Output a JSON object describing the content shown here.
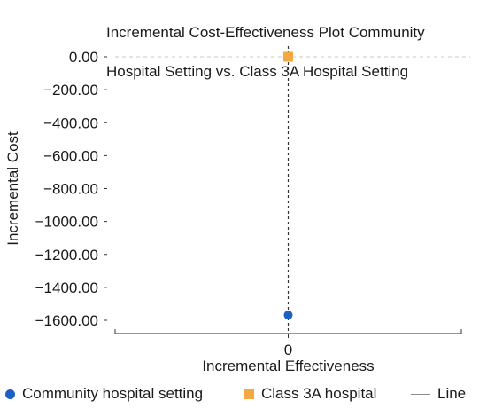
{
  "chart_data": {
    "type": "scatter",
    "title_lines": [
      "Incremental Cost-Effectiveness Plot Community",
      "Hospital Setting vs. Class 3A Hospital Setting"
    ],
    "xlabel": "Incremental Effectiveness",
    "ylabel": "Incremental Cost",
    "x_ticks": [
      0
    ],
    "y_ticks": [
      0,
      -200,
      -400,
      -600,
      -800,
      -1000,
      -1200,
      -1400,
      -1600
    ],
    "y_tick_labels": [
      "0.00",
      "−200.00",
      "−400.00",
      "−600.00",
      "−800.00",
      "−1000.00",
      "−1200.00",
      "−1400.00",
      "−1600.00"
    ],
    "x_tick_labels": [
      "0"
    ],
    "ylim": [
      -1600,
      0
    ],
    "xlim": [
      -1,
      1
    ],
    "grid": false,
    "reference_lines": [
      {
        "orientation": "horizontal",
        "value": 0,
        "style": "dashed",
        "color": "#c8c8c8"
      },
      {
        "orientation": "vertical",
        "value": 0,
        "style": "dashed",
        "color": "#333333"
      }
    ],
    "series": [
      {
        "name": "Community hospital setting",
        "marker": "circle",
        "color": "#1f5fc4",
        "points": [
          {
            "x": 0,
            "y": -1568
          }
        ]
      },
      {
        "name": "Class 3A hospital",
        "marker": "square",
        "color": "#f5a742",
        "points": [
          {
            "x": 0,
            "y": 0
          }
        ]
      },
      {
        "name": "Line",
        "marker": "line",
        "color": "#8c8c8c",
        "points": []
      }
    ],
    "legend_position": "bottom"
  }
}
